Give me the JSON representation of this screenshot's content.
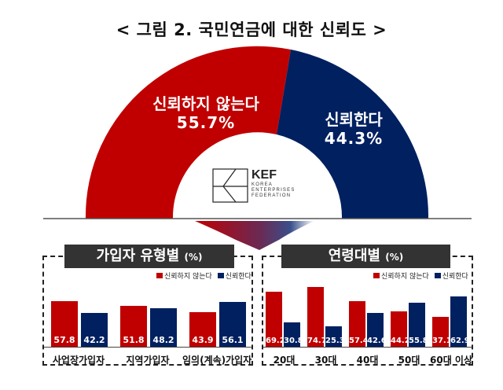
{
  "title": "< 그림 2. 국민연금에 대한 신뢰도 >",
  "colors": {
    "distrust": "#C00000",
    "trust": "#002060",
    "header_bg": "#333333"
  },
  "donut": {
    "distrust": {
      "label": "신뢰하지 않는다",
      "value": "55.7%"
    },
    "trust": {
      "label": "신뢰한다",
      "value": "44.3%"
    }
  },
  "logo": {
    "abbr": "KEF",
    "line1": "KOREA",
    "line2": "ENTERPRISES",
    "line3": "FEDERATION"
  },
  "panels": {
    "left": {
      "title": "가입자 유형별",
      "unit": "(%)",
      "legend_distrust": "신뢰하지 않는다",
      "legend_trust": "신뢰한다"
    },
    "right": {
      "title": "연령대별",
      "unit": "(%)",
      "legend_distrust": "신뢰하지 않는다",
      "legend_trust": "신뢰한다"
    }
  },
  "chart_data": [
    {
      "type": "pie",
      "title": "국민연금에 대한 신뢰도",
      "categories": [
        "신뢰하지 않는다",
        "신뢰한다"
      ],
      "values": [
        55.7,
        44.3
      ],
      "style": "half-donut"
    },
    {
      "type": "bar",
      "title": "가입자 유형별 (%)",
      "categories": [
        "사업장가입자",
        "지역가입자",
        "임의(계속)가입자"
      ],
      "series": [
        {
          "name": "신뢰하지 않는다",
          "values": [
            57.8,
            51.8,
            43.9
          ]
        },
        {
          "name": "신뢰한다",
          "values": [
            42.2,
            48.2,
            56.1
          ]
        }
      ],
      "legend_position": "top-right"
    },
    {
      "type": "bar",
      "title": "연령대별 (%)",
      "categories": [
        "20대",
        "30대",
        "40대",
        "50대",
        "60대 이상"
      ],
      "series": [
        {
          "name": "신뢰하지 않는다",
          "values": [
            69.2,
            74.7,
            57.4,
            44.2,
            37.1
          ]
        },
        {
          "name": "신뢰한다",
          "values": [
            30.8,
            25.3,
            42.6,
            55.8,
            62.9
          ]
        }
      ],
      "legend_position": "top-right"
    }
  ]
}
